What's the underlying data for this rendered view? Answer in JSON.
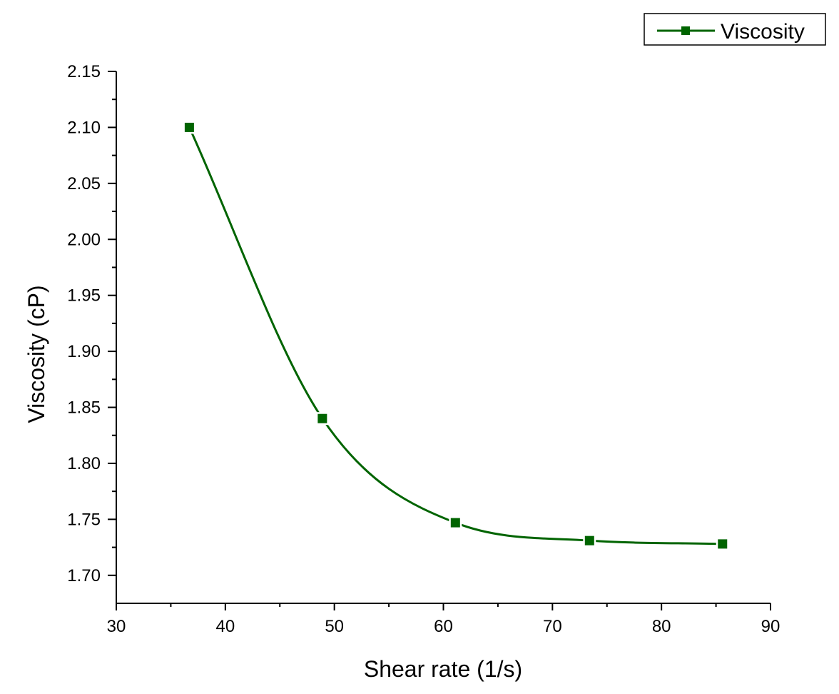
{
  "chart_data": {
    "type": "line",
    "title": "",
    "xlabel": "Shear rate (1/s)",
    "ylabel": "Viscosity (cP)",
    "xlim": [
      30,
      90
    ],
    "ylim": [
      1.675,
      2.15
    ],
    "x_ticks": [
      30,
      40,
      50,
      60,
      70,
      80,
      90
    ],
    "x_tick_labels": [
      "30",
      "40",
      "50",
      "60",
      "70",
      "80",
      "90"
    ],
    "y_ticks": [
      1.7,
      1.75,
      1.8,
      1.85,
      1.9,
      1.95,
      2.0,
      2.05,
      2.1,
      2.15
    ],
    "y_tick_labels": [
      "1.70",
      "1.75",
      "1.80",
      "1.85",
      "1.90",
      "1.95",
      "2.00",
      "2.05",
      "2.10",
      "2.15"
    ],
    "grid": false,
    "legend_position": "top-right",
    "series": [
      {
        "name": "Viscosity",
        "color": "#006400",
        "marker": "square",
        "smooth": true,
        "x": [
          36.7,
          48.9,
          61.1,
          73.4,
          85.6
        ],
        "y": [
          2.1,
          1.84,
          1.747,
          1.731,
          1.728
        ]
      }
    ]
  }
}
